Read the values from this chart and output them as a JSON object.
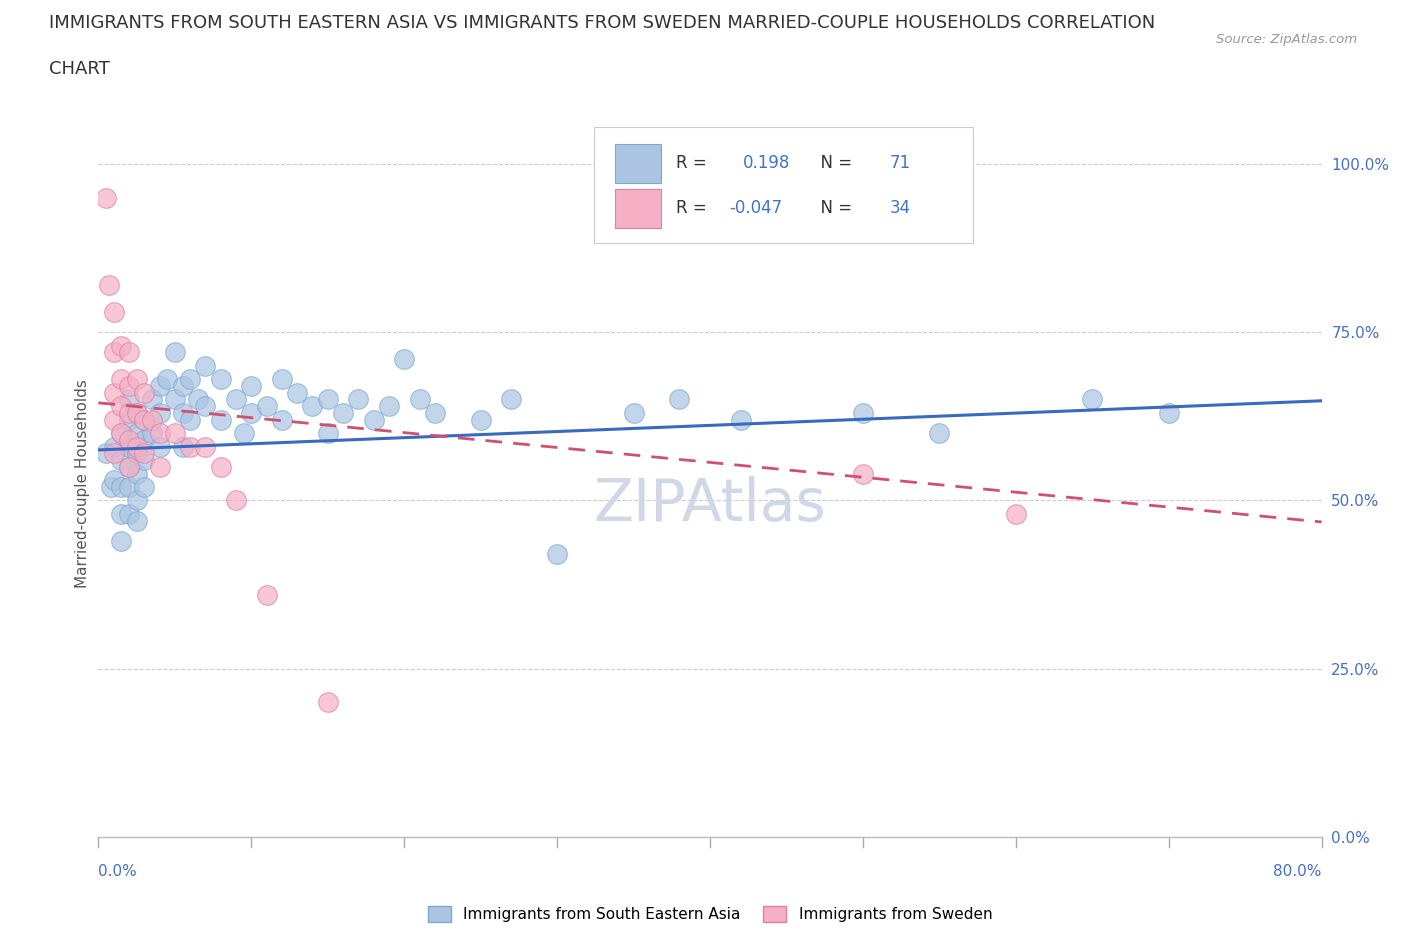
{
  "title_line1": "IMMIGRANTS FROM SOUTH EASTERN ASIA VS IMMIGRANTS FROM SWEDEN MARRIED-COUPLE HOUSEHOLDS CORRELATION",
  "title_line2": "CHART",
  "source": "Source: ZipAtlas.com",
  "ylabel": "Married-couple Households",
  "right_yticks": [
    "100.0%",
    "75.0%",
    "50.0%",
    "25.0%",
    "0.0%"
  ],
  "right_ytick_vals": [
    1.0,
    0.75,
    0.5,
    0.25,
    0.0
  ],
  "xlim": [
    0.0,
    0.8
  ],
  "ylim": [
    0.0,
    1.05
  ],
  "blue_R": 0.198,
  "blue_N": 71,
  "pink_R": -0.047,
  "pink_N": 34,
  "blue_color": "#aac4e2",
  "pink_color": "#f5b0c5",
  "blue_edge_color": "#7aaad0",
  "pink_edge_color": "#e080a0",
  "blue_line_color": "#3a6abf",
  "pink_line_color": "#d05070",
  "watermark": "ZIPAtlas",
  "watermark_color": "#d0d8e8",
  "legend_label_blue": "Immigrants from South Eastern Asia",
  "legend_label_pink": "Immigrants from Sweden",
  "blue_scatter_x": [
    0.005,
    0.008,
    0.01,
    0.01,
    0.015,
    0.015,
    0.015,
    0.015,
    0.015,
    0.02,
    0.02,
    0.02,
    0.02,
    0.02,
    0.02,
    0.025,
    0.025,
    0.025,
    0.025,
    0.025,
    0.025,
    0.03,
    0.03,
    0.03,
    0.03,
    0.035,
    0.035,
    0.04,
    0.04,
    0.04,
    0.045,
    0.05,
    0.05,
    0.055,
    0.055,
    0.055,
    0.06,
    0.06,
    0.065,
    0.07,
    0.07,
    0.08,
    0.08,
    0.09,
    0.095,
    0.1,
    0.1,
    0.11,
    0.12,
    0.12,
    0.13,
    0.14,
    0.15,
    0.15,
    0.16,
    0.17,
    0.18,
    0.19,
    0.2,
    0.21,
    0.22,
    0.25,
    0.27,
    0.3,
    0.35,
    0.38,
    0.42,
    0.5,
    0.55,
    0.65,
    0.7
  ],
  "blue_scatter_y": [
    0.57,
    0.52,
    0.58,
    0.53,
    0.6,
    0.56,
    0.52,
    0.48,
    0.44,
    0.65,
    0.62,
    0.58,
    0.55,
    0.52,
    0.48,
    0.63,
    0.6,
    0.57,
    0.54,
    0.5,
    0.47,
    0.62,
    0.59,
    0.56,
    0.52,
    0.65,
    0.6,
    0.67,
    0.63,
    0.58,
    0.68,
    0.72,
    0.65,
    0.67,
    0.63,
    0.58,
    0.68,
    0.62,
    0.65,
    0.7,
    0.64,
    0.68,
    0.62,
    0.65,
    0.6,
    0.67,
    0.63,
    0.64,
    0.68,
    0.62,
    0.66,
    0.64,
    0.65,
    0.6,
    0.63,
    0.65,
    0.62,
    0.64,
    0.71,
    0.65,
    0.63,
    0.62,
    0.65,
    0.42,
    0.63,
    0.65,
    0.62,
    0.63,
    0.6,
    0.65,
    0.63
  ],
  "pink_scatter_x": [
    0.005,
    0.007,
    0.01,
    0.01,
    0.01,
    0.01,
    0.01,
    0.015,
    0.015,
    0.015,
    0.015,
    0.02,
    0.02,
    0.02,
    0.02,
    0.02,
    0.025,
    0.025,
    0.025,
    0.03,
    0.03,
    0.03,
    0.035,
    0.04,
    0.04,
    0.05,
    0.06,
    0.07,
    0.08,
    0.09,
    0.11,
    0.15,
    0.5,
    0.6
  ],
  "pink_scatter_y": [
    0.95,
    0.82,
    0.78,
    0.72,
    0.66,
    0.62,
    0.57,
    0.73,
    0.68,
    0.64,
    0.6,
    0.72,
    0.67,
    0.63,
    0.59,
    0.55,
    0.68,
    0.63,
    0.58,
    0.66,
    0.62,
    0.57,
    0.62,
    0.6,
    0.55,
    0.6,
    0.58,
    0.58,
    0.55,
    0.5,
    0.36,
    0.2,
    0.54,
    0.48
  ],
  "blue_trend_start_y": 0.575,
  "blue_trend_end_y": 0.648,
  "pink_trend_start_y": 0.645,
  "pink_trend_end_y": 0.468,
  "grid_hlines": [
    0.25,
    0.5,
    0.75,
    1.0
  ],
  "title_fontsize": 13,
  "source_fontsize": 10
}
